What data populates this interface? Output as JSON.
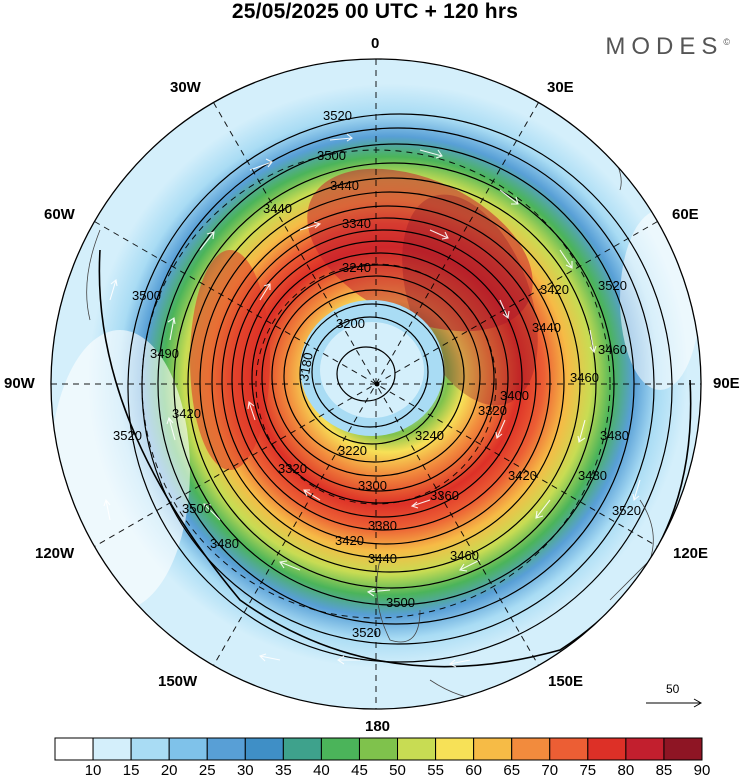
{
  "header": {
    "title": "25/05/2025  00 UTC  + 120 hrs",
    "brand": "MODES",
    "brand_mark": "©"
  },
  "longitude_labels": {
    "top": "0",
    "n30e": "30E",
    "n60e": "60E",
    "e90": "90E",
    "s120e": "120E",
    "s150e": "150E",
    "bottom": "180",
    "s150w": "150W",
    "s120w": "120W",
    "w90": "90W",
    "n60w": "60W",
    "n30w": "30W"
  },
  "contour_labels": [
    "3520",
    "3500",
    "3440",
    "3440",
    "3340",
    "3240",
    "3200",
    "3180",
    "3220",
    "3240",
    "3300",
    "3320",
    "3360",
    "3380",
    "3400",
    "3420",
    "3440",
    "3460",
    "3480",
    "3500",
    "3520",
    "3420",
    "3320",
    "3440",
    "3420",
    "3460",
    "3460",
    "3520",
    "3480",
    "3520",
    "3500",
    "3520",
    "3490",
    "3500",
    "3480",
    "3420"
  ],
  "reference_vector": {
    "label": "50"
  },
  "colorbar": {
    "labels": [
      "10",
      "15",
      "20",
      "25",
      "30",
      "35",
      "40",
      "45",
      "50",
      "55",
      "60",
      "65",
      "70",
      "75",
      "80",
      "85",
      "90"
    ],
    "colors": [
      "#ffffff",
      "#d4effb",
      "#a9dcf4",
      "#7fc2ea",
      "#589fd6",
      "#3f8fc6",
      "#3ea28c",
      "#4bb45a",
      "#7fc24c",
      "#c8dc53",
      "#f7e157",
      "#f6bb46",
      "#f28b3d",
      "#ec5e34",
      "#dd3027",
      "#c21f2e",
      "#8e1524"
    ]
  }
}
